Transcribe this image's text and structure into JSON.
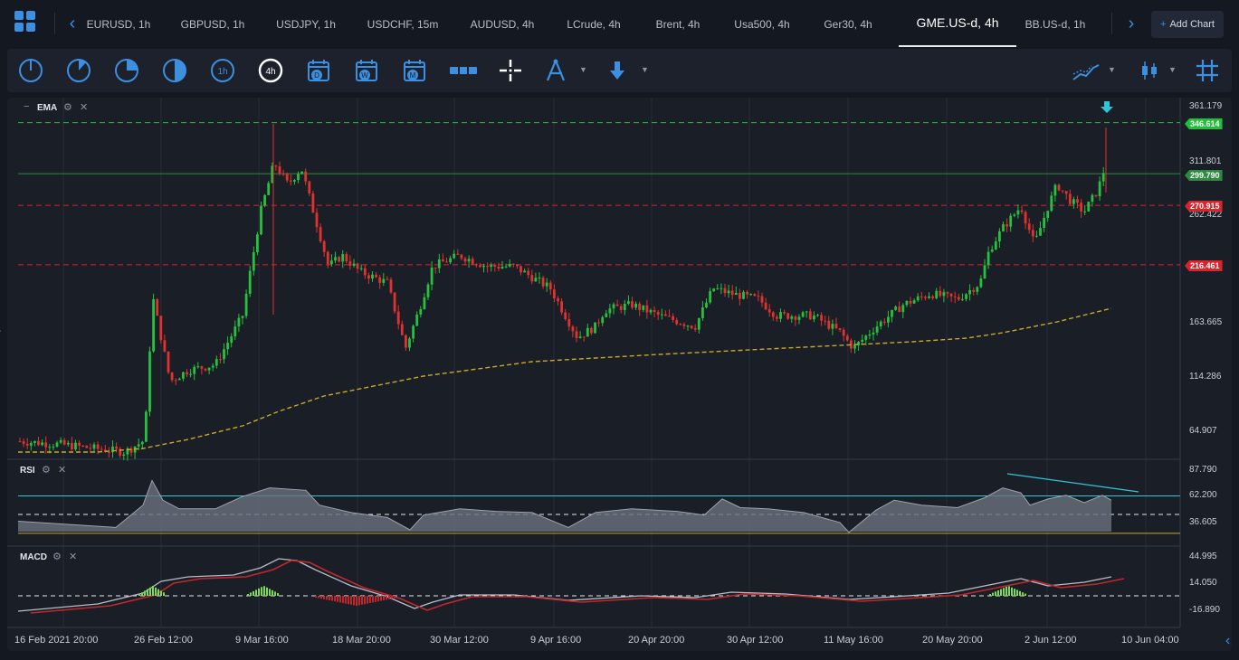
{
  "tabs": [
    {
      "label": "EURUSD, 1h",
      "active": false
    },
    {
      "label": "GBPUSD, 1h",
      "active": false
    },
    {
      "label": "USDJPY, 1h",
      "active": false
    },
    {
      "label": "USDCHF, 15m",
      "active": false
    },
    {
      "label": "AUDUSD, 4h",
      "active": false
    },
    {
      "label": "LCrude, 4h",
      "active": false
    },
    {
      "label": "Brent, 4h",
      "active": false
    },
    {
      "label": "Usa500, 4h",
      "active": false
    },
    {
      "label": "Ger30, 4h",
      "active": false
    },
    {
      "label": "GME.US-d, 4h",
      "active": true
    },
    {
      "label": "BB.US-d, 1h",
      "active": false
    }
  ],
  "add_chart": {
    "plus": "+",
    "label": "Add Chart"
  },
  "toolbar": {
    "timeframes": [
      "1m",
      "5m",
      "15m",
      "30m",
      "1h",
      "4h",
      "D",
      "W",
      "M"
    ],
    "active_timeframe": "4h",
    "tools": [
      "range-icon",
      "crosshair-icon",
      "drawing-tools-icon",
      "arrow-down-icon"
    ],
    "right_tools": [
      "indicators-icon",
      "chart-type-icon",
      "grid-icon"
    ]
  },
  "panes": {
    "main": {
      "label": "EMA",
      "minus": "−",
      "close": "✕"
    },
    "rsi": {
      "label": "RSI",
      "close": "✕"
    },
    "macd": {
      "label": "MACD",
      "close": "✕"
    }
  },
  "price_axis": [
    "361.179",
    "311.801",
    "262.422",
    "163.665",
    "114.286",
    "64.907"
  ],
  "price_tags": [
    {
      "value": "346.614",
      "color": "#1fbf3a"
    },
    {
      "value": "299.790",
      "color": "#2e8a3e"
    },
    {
      "value": "270.915",
      "color": "#d7252b"
    },
    {
      "value": "216.461",
      "color": "#d7252b"
    }
  ],
  "rsi_axis": [
    "87.790",
    "62.200",
    "36.605"
  ],
  "macd_axis": [
    "44.995",
    "14.050",
    "-16.890"
  ],
  "dates": [
    "16 Feb 2021 20:00",
    "26 Feb 12:00",
    "9 Mar 16:00",
    "18 Mar 20:00",
    "30 Mar 12:00",
    "9 Apr 16:00",
    "20 Apr 20:00",
    "30 Apr 12:00",
    "11 May 16:00",
    "20 May 20:00",
    "2 Jun 12:00",
    "10 Jun 04:00"
  ],
  "colors": {
    "bull": "#26c13e",
    "bear": "#e0322f",
    "ema": "#c8a92a",
    "rsi_band": "#2fc7d6",
    "macd_signal": "#c0282b",
    "accent": "#3d8fe0"
  }
}
